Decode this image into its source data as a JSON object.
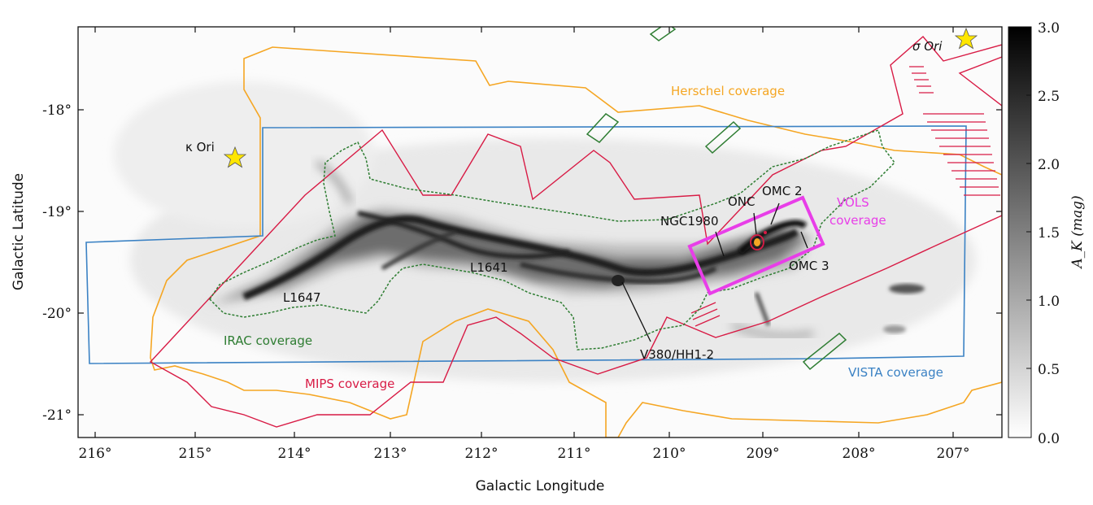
{
  "axes": {
    "xlabel": "Galactic Longitude",
    "ylabel": "Galactic Latitude",
    "xticks": [
      "216°",
      "215°",
      "214°",
      "213°",
      "212°",
      "211°",
      "210°",
      "209°",
      "208°",
      "207°"
    ],
    "yticks": [
      "-18°",
      "-19°",
      "-20°",
      "-21°"
    ]
  },
  "colorbar": {
    "label": "A_K (mag)",
    "ticks": [
      "3.0",
      "2.5",
      "2.0",
      "1.5",
      "1.0",
      "0.5",
      "0.0"
    ]
  },
  "stars": {
    "kappa_ori": "κ Ori",
    "sigma_ori": "σ Ori"
  },
  "coverage": {
    "herschel": "Herschel coverage",
    "irac": "IRAC coverage",
    "mips": "MIPS coverage",
    "vista": "VISTA coverage",
    "vols_line1": "VOLS",
    "vols_line2": "coverage"
  },
  "regions": {
    "l1647": "L1647",
    "l1641": "L1641",
    "ngc1980": "NGC1980",
    "onc": "ONC",
    "omc2": "OMC 2",
    "omc3": "OMC 3",
    "v380": "V380/HH1-2"
  },
  "colors": {
    "herschel": "#f5a623",
    "irac": "#2e7d32",
    "mips": "#d81b45",
    "vista": "#3b82c4",
    "vols": "#e83ee8",
    "star": "#ffe600"
  }
}
